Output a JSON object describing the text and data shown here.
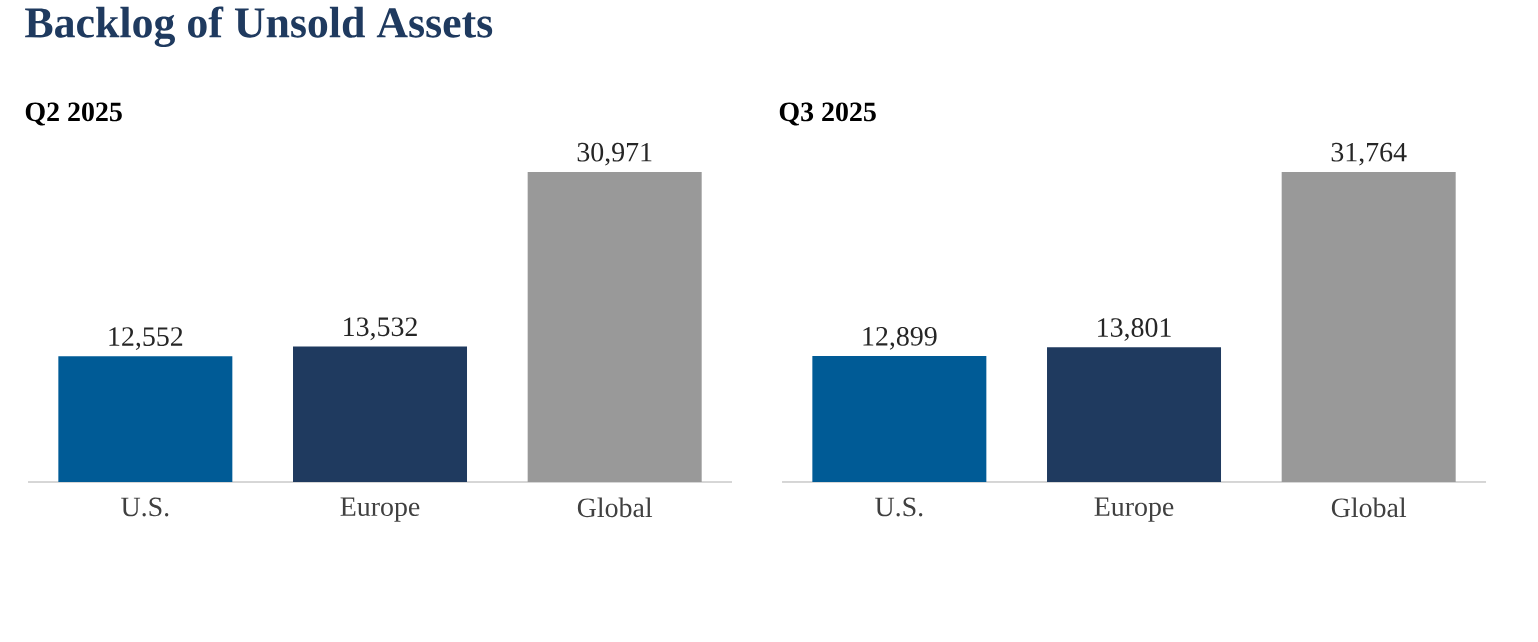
{
  "chart_data": [
    {
      "type": "bar",
      "title": "Backlog of Unsold Assets",
      "subtitle": "Q2 2025",
      "categories": [
        "U.S.",
        "Europe",
        "Global"
      ],
      "values": [
        12552,
        13532,
        30971
      ],
      "colors": [
        "#005b96",
        "#1f3a5f",
        "#999999"
      ],
      "value_labels": [
        "12,552",
        "13,532",
        "30,971"
      ],
      "tick_labels": "x"
    },
    {
      "type": "bar",
      "subtitle": "Q3 2025",
      "categories": [
        "U.S.",
        "Europe",
        "Global"
      ],
      "values": [
        12899,
        13801,
        31764
      ],
      "colors": [
        "#005b96",
        "#1f3a5f",
        "#999999"
      ],
      "value_labels": [
        "12,899",
        "13,801",
        "31,764"
      ],
      "tick_labels": "x"
    }
  ]
}
